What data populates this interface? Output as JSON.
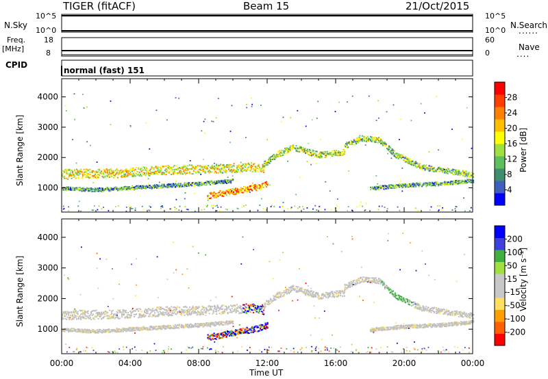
{
  "header": {
    "station": "TIGER (fitACF)",
    "beam": "Beam 15",
    "date": "21/Oct/2015"
  },
  "strip_panels": {
    "nsky_label": "N.Sky",
    "nsky_ticks": [
      "10^5",
      "10^0"
    ],
    "nsearch_label": "N.Search",
    "freq_label": "Freq.",
    "freq_unit": "[MHz]",
    "freq_ticks": [
      "18",
      "8"
    ],
    "nave_label": "Nave",
    "nave_ticks": [
      "60",
      "0"
    ],
    "cpid_label": "CPID",
    "cpid_value": "normal (fast) 151"
  },
  "colors": {
    "power_scale": [
      "#0000ff",
      "#3f5fbf",
      "#3f8f6f",
      "#5fbf5f",
      "#9fdf3f",
      "#ffff00",
      "#ffbf00",
      "#ff7f00",
      "#ff3f00",
      "#ff0000"
    ],
    "velocity_scale": [
      "#ff0000",
      "#ff5f00",
      "#ff9f00",
      "#ffdf5f",
      "#c8c8c8",
      "#c8c8c8",
      "#9fdf3f",
      "#3faf3f",
      "#3f3fdf",
      "#0000ff"
    ],
    "ground_scatter": "#c0c0c0"
  },
  "chart_data": [
    {
      "type": "heatmap",
      "name": "Power panel",
      "ylabel": "Slant Range [km]",
      "ylim": [
        200,
        4600
      ],
      "yticks": [
        "1000",
        "2000",
        "3000",
        "4000"
      ],
      "colorbar_label": "Power [dB]",
      "colorbar_ticks": [
        "4",
        "8",
        "12",
        "16",
        "20",
        "24",
        "28"
      ],
      "scatter_bands": [
        {
          "t": [
            0,
            3,
            6,
            9,
            11,
            11.8
          ],
          "r": [
            1480,
            1500,
            1600,
            1650,
            1700,
            1650
          ],
          "w": 300,
          "level": 0.55
        },
        {
          "t": [
            11.8,
            12.5,
            13.5,
            15,
            16.5
          ],
          "r": [
            1800,
            2100,
            2350,
            2100,
            2200
          ],
          "w": 200,
          "level": 0.45
        },
        {
          "t": [
            16.5,
            17.5,
            18.5,
            19.5,
            21,
            24
          ],
          "r": [
            2400,
            2650,
            2600,
            2100,
            1700,
            1450
          ],
          "w": 180,
          "level": 0.4
        },
        {
          "t": [
            8.5,
            10,
            11.5,
            12
          ],
          "r": [
            750,
            900,
            1050,
            1150
          ],
          "w": 200,
          "level": 0.7
        },
        {
          "t": [
            0,
            2,
            5,
            8,
            10
          ],
          "r": [
            1000,
            950,
            1050,
            1150,
            1250
          ],
          "w": 120,
          "level": 0.3
        },
        {
          "t": [
            18,
            20,
            22,
            24
          ],
          "r": [
            1000,
            1100,
            1150,
            1250
          ],
          "w": 120,
          "level": 0.3
        }
      ]
    },
    {
      "type": "heatmap",
      "name": "Velocity panel",
      "xlabel": "Time UT",
      "xticks": [
        "00:00",
        "04:00",
        "08:00",
        "12:00",
        "16:00",
        "20:00",
        "00:00"
      ],
      "ylabel": "Slant Range [km]",
      "ylim": [
        200,
        4600
      ],
      "yticks": [
        "1000",
        "2000",
        "3000",
        "4000"
      ],
      "colorbar_label": "Velocity [m s⁻¹]",
      "colorbar_ticks": [
        "-200",
        "-100",
        "-50",
        "-15",
        "15",
        "50",
        "100",
        "200"
      ]
    }
  ]
}
